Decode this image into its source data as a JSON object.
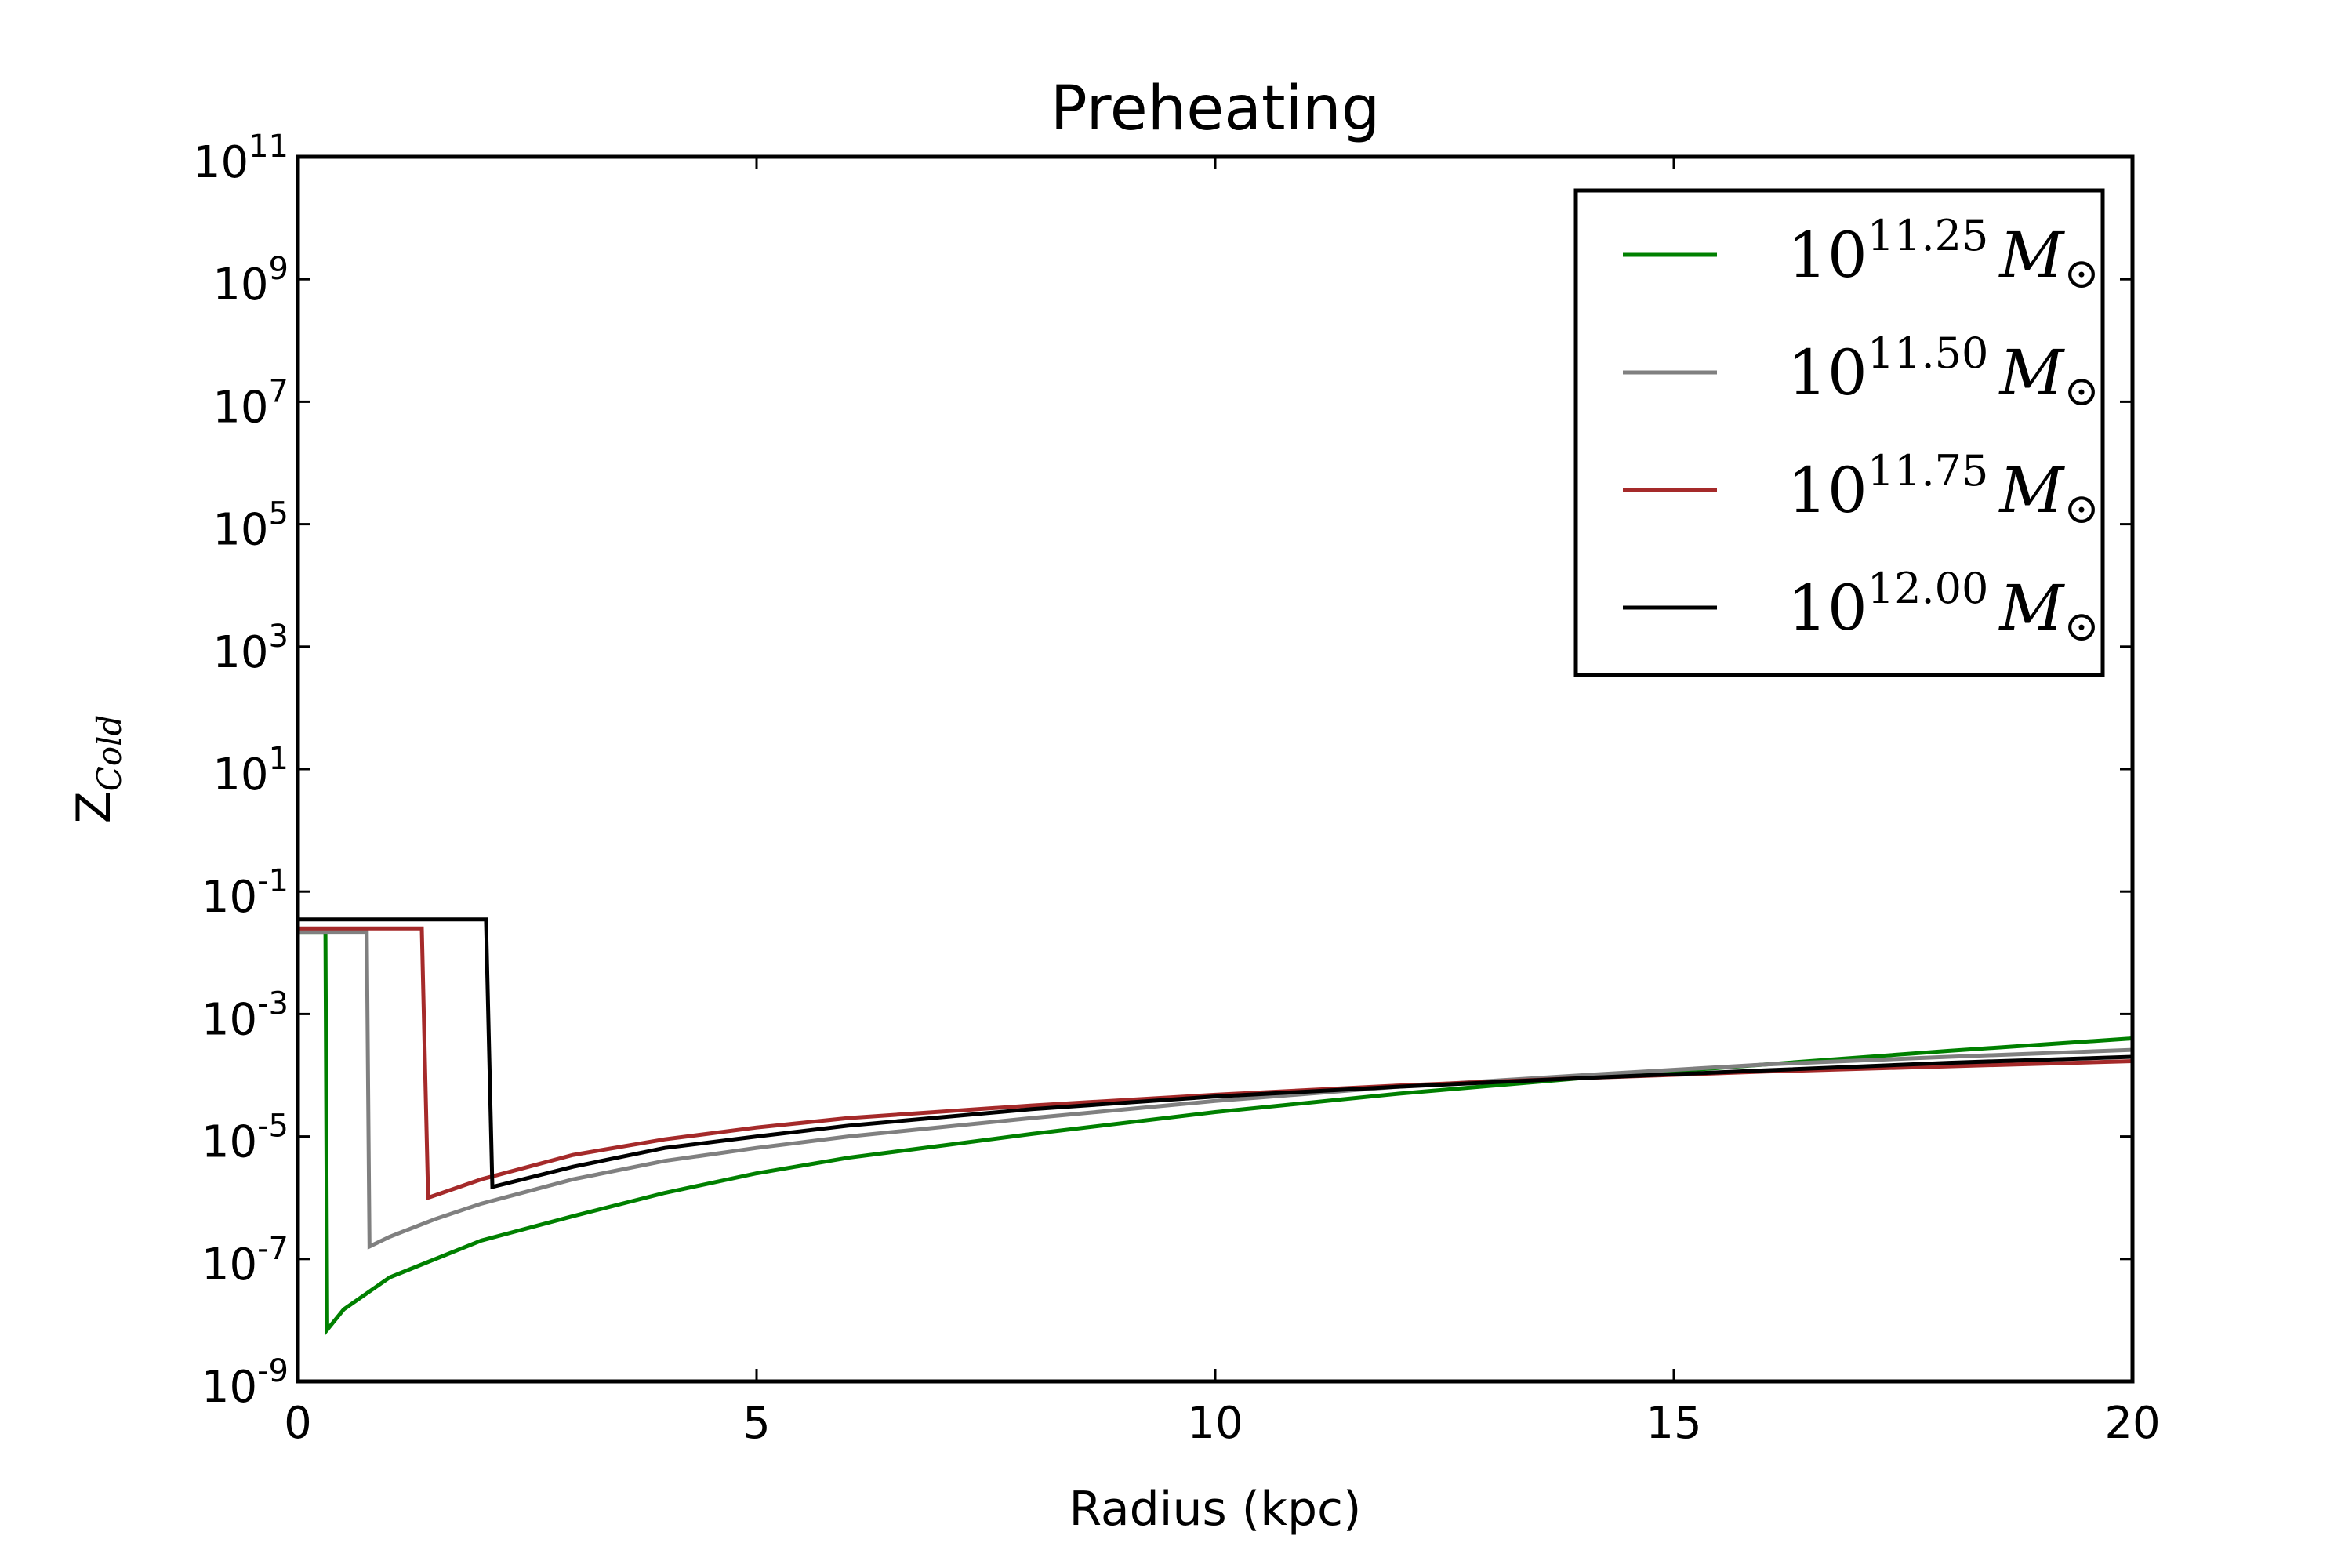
{
  "chart_data": {
    "type": "line",
    "title": "Preheating",
    "xlabel": "Radius (kpc)",
    "ylabel": {
      "base": "Z",
      "sub": "Cold"
    },
    "xlim": [
      0,
      20
    ],
    "ylim_log10": [
      -9,
      11
    ],
    "y_scale": "log",
    "grid": false,
    "legend_placement": "top-right",
    "x_ticks": [
      {
        "value": 0,
        "label": "0"
      },
      {
        "value": 5,
        "label": "5"
      },
      {
        "value": 10,
        "label": "10"
      },
      {
        "value": 15,
        "label": "15"
      },
      {
        "value": 20,
        "label": "20"
      }
    ],
    "y_ticks": [
      {
        "exp": 11,
        "base": "10",
        "sup": "11"
      },
      {
        "exp": 9,
        "base": "10",
        "sup": "9"
      },
      {
        "exp": 7,
        "base": "10",
        "sup": "7"
      },
      {
        "exp": 5,
        "base": "10",
        "sup": "5"
      },
      {
        "exp": 3,
        "base": "10",
        "sup": "3"
      },
      {
        "exp": 1,
        "base": "10",
        "sup": "1"
      },
      {
        "exp": -1,
        "base": "10",
        "sup": "-1"
      },
      {
        "exp": -3,
        "base": "10",
        "sup": "-3"
      },
      {
        "exp": -5,
        "base": "10",
        "sup": "-5"
      },
      {
        "exp": -7,
        "base": "10",
        "sup": "-7"
      },
      {
        "exp": -9,
        "base": "10",
        "sup": "-9"
      }
    ],
    "series": [
      {
        "legend": {
          "base": "10",
          "sup": "11.25",
          "m": "M",
          "sub": "⊙"
        },
        "color": "#008000",
        "points": [
          [
            0,
            0.022
          ],
          [
            0.3,
            0.022
          ],
          [
            0.32,
            7e-09
          ],
          [
            0.5,
            1.5e-08
          ],
          [
            1,
            5e-08
          ],
          [
            2,
            2e-07
          ],
          [
            3,
            5e-07
          ],
          [
            4,
            1.2e-06
          ],
          [
            5,
            2.5e-06
          ],
          [
            6,
            4.5e-06
          ],
          [
            8,
            1.1e-05
          ],
          [
            10,
            2.5e-05
          ],
          [
            12,
            5e-05
          ],
          [
            14,
            9e-05
          ],
          [
            16,
            0.00015
          ],
          [
            18,
            0.00025
          ],
          [
            20,
            0.0004
          ]
        ]
      },
      {
        "legend": {
          "base": "10",
          "sup": "11.50",
          "m": "M",
          "sub": "⊙"
        },
        "color": "#808080",
        "points": [
          [
            0,
            0.022
          ],
          [
            0.75,
            0.022
          ],
          [
            0.78,
            1.6e-07
          ],
          [
            1,
            2.3e-07
          ],
          [
            1.5,
            4.5e-07
          ],
          [
            2,
            8e-07
          ],
          [
            3,
            2e-06
          ],
          [
            4,
            4e-06
          ],
          [
            5,
            6.5e-06
          ],
          [
            6,
            1e-05
          ],
          [
            8,
            2e-05
          ],
          [
            10,
            3.8e-05
          ],
          [
            12,
            6.5e-05
          ],
          [
            14,
            0.0001
          ],
          [
            16,
            0.00015
          ],
          [
            18,
            0.0002
          ],
          [
            20,
            0.00026
          ]
        ]
      },
      {
        "legend": {
          "base": "10",
          "sup": "11.75",
          "m": "M",
          "sub": "⊙"
        },
        "color": "#a52a2a",
        "points": [
          [
            0,
            0.025
          ],
          [
            1.35,
            0.025
          ],
          [
            1.42,
            1e-06
          ],
          [
            2,
            2e-06
          ],
          [
            3,
            5e-06
          ],
          [
            4,
            9e-06
          ],
          [
            5,
            1.4e-05
          ],
          [
            6,
            2e-05
          ],
          [
            8,
            3.2e-05
          ],
          [
            10,
            4.8e-05
          ],
          [
            12,
            6.8e-05
          ],
          [
            14,
            9e-05
          ],
          [
            16,
            0.000115
          ],
          [
            18,
            0.00014
          ],
          [
            20,
            0.00017
          ]
        ]
      },
      {
        "legend": {
          "base": "10",
          "sup": "12.00",
          "m": "M",
          "sub": "⊙"
        },
        "color": "#000000",
        "points": [
          [
            0,
            0.035
          ],
          [
            2.05,
            0.035
          ],
          [
            2.12,
            1.5e-06
          ],
          [
            3,
            3.2e-06
          ],
          [
            4,
            6.5e-06
          ],
          [
            5,
            1e-05
          ],
          [
            6,
            1.5e-05
          ],
          [
            8,
            2.8e-05
          ],
          [
            10,
            4.5e-05
          ],
          [
            12,
            6.5e-05
          ],
          [
            14,
            9e-05
          ],
          [
            16,
            0.00012
          ],
          [
            18,
            0.00016
          ],
          [
            20,
            0.0002
          ]
        ]
      }
    ]
  }
}
